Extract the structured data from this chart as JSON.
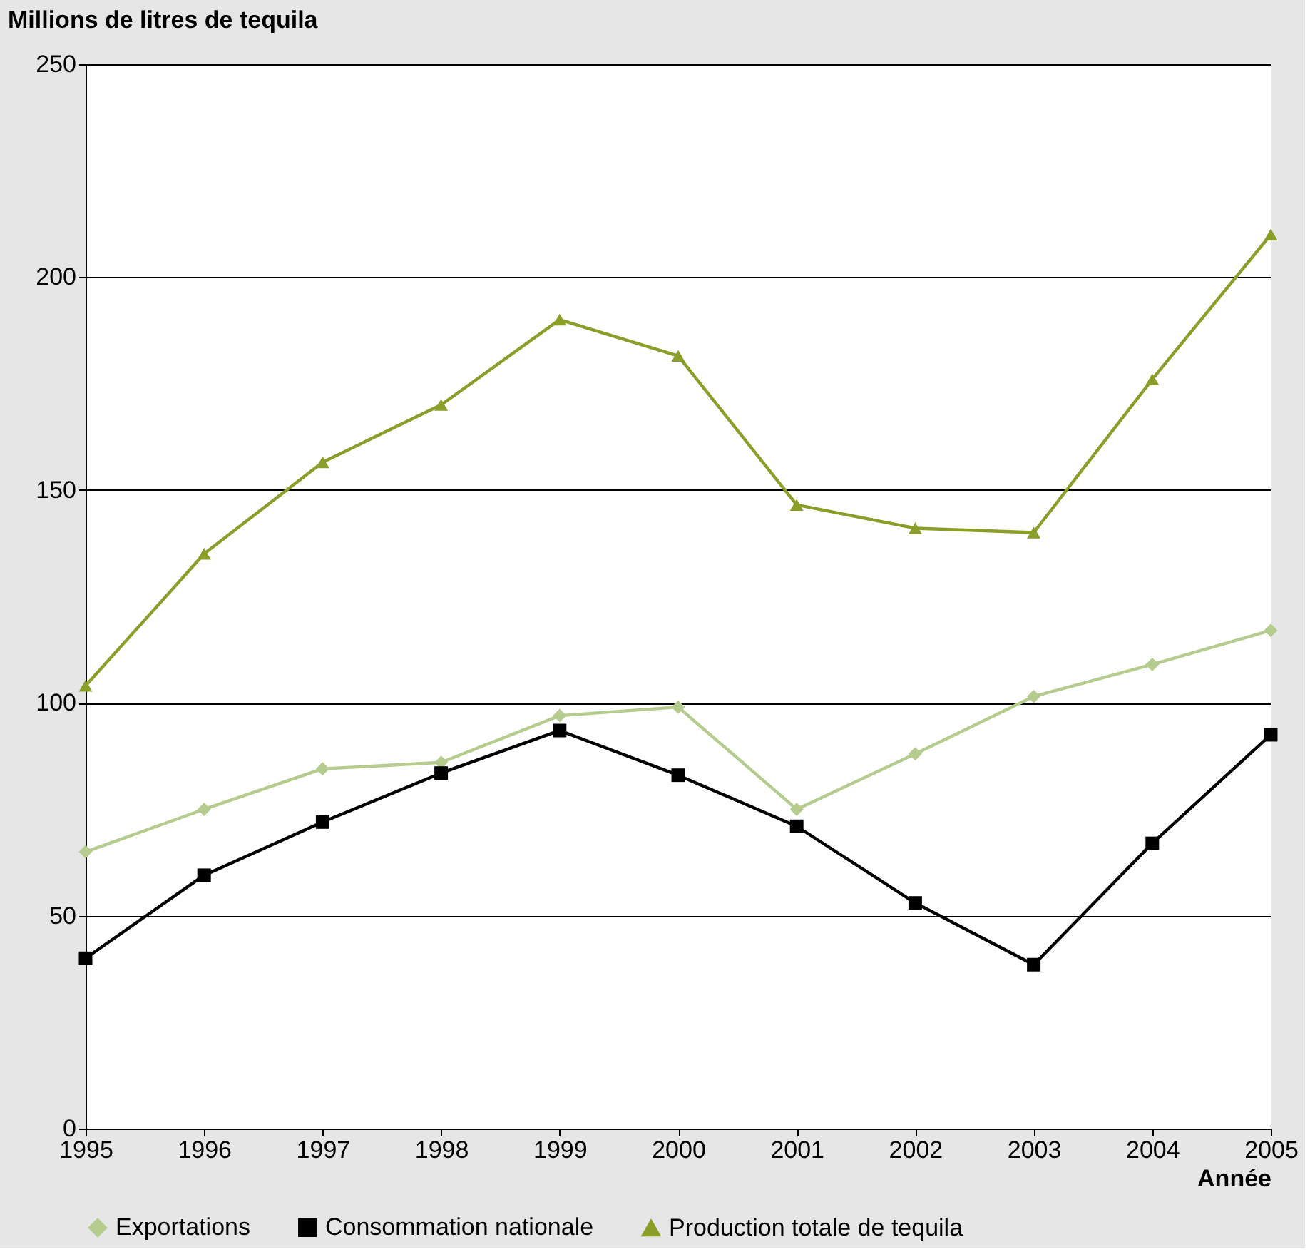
{
  "chart_data": {
    "type": "line",
    "ylabel": "Millions de litres de tequila",
    "xlabel": "Année",
    "x": [
      1995,
      1996,
      1997,
      1998,
      1999,
      2000,
      2001,
      2002,
      2003,
      2004,
      2005
    ],
    "xlim": [
      1995,
      2005
    ],
    "xticks": [
      1995,
      1996,
      1997,
      1998,
      1999,
      2000,
      2001,
      2002,
      2003,
      2004,
      2005
    ],
    "ylim": [
      0,
      250
    ],
    "yticks": [
      0,
      50,
      100,
      150,
      200,
      250
    ],
    "grid": "y",
    "legend": "bottom",
    "line_style": "solid",
    "series": [
      {
        "name": "Exportations",
        "color": "#b5cc8e",
        "marker": "diamond",
        "values": [
          65,
          75,
          84.5,
          86,
          97,
          99,
          75,
          88,
          101.5,
          109,
          117
        ]
      },
      {
        "name": "Consommation nationale",
        "color": "#000000",
        "marker": "square",
        "values": [
          40,
          59.5,
          72,
          83.5,
          93.5,
          83,
          71,
          53,
          38.5,
          67,
          92.5
        ]
      },
      {
        "name": "Production totale de tequila",
        "color": "#8a9f2a",
        "marker": "triangle",
        "values": [
          104,
          135,
          156.5,
          170,
          190,
          181.5,
          146.5,
          141,
          140,
          176,
          210
        ]
      }
    ]
  }
}
